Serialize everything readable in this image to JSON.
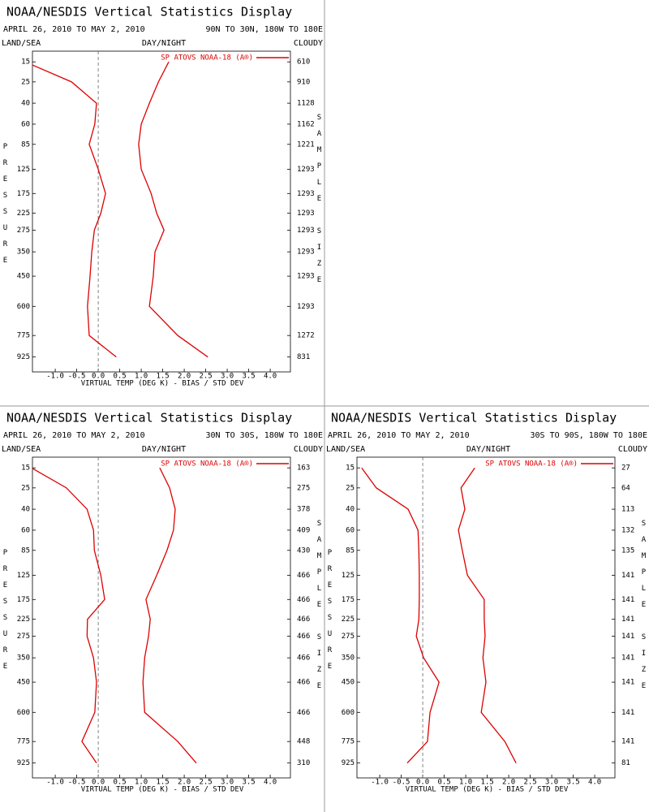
{
  "chart_data": [
    {
      "type": "profile",
      "title": "NOAA/NESDIS Vertical Statistics Display",
      "subtitle": "APRIL 26, 2010 TO MAY 2, 2010",
      "region": "90N TO 30N, 180W TO 180E",
      "land_sea": "LAND/SEA",
      "day_night": "DAY/NIGHT",
      "cloudy": "CLOUDY",
      "xlabel": "VIRTUAL TEMP (DEG K) - BIAS / STD DEV",
      "ylabel": "PRESSURE",
      "y2label": "SAMPLE SIZE",
      "xlim": [
        -1.53,
        4.47
      ],
      "xticks": [
        {
          "value": -1.0,
          "label": "-1.0"
        },
        {
          "value": -0.5,
          "label": "-0.5"
        },
        {
          "value": 0,
          "label": "0.0"
        },
        {
          "value": 0.5,
          "label": "0.5"
        },
        {
          "value": 1.0,
          "label": "1.0"
        },
        {
          "value": 1.5,
          "label": "1.5"
        },
        {
          "value": 2.0,
          "label": "2.0"
        },
        {
          "value": 2.5,
          "label": "2.5"
        },
        {
          "value": 3.0,
          "label": "3.0"
        },
        {
          "value": 3.5,
          "label": "3.5"
        },
        {
          "value": 4.0,
          "label": "4.0"
        }
      ],
      "ylim": [
        11,
        1040
      ],
      "yscale": {
        "type": "power",
        "exponent": 0.3,
        "reversed": true
      },
      "pressure": [
        15,
        25,
        40,
        60,
        85,
        125,
        175,
        225,
        275,
        350,
        450,
        600,
        775,
        925
      ],
      "sample_size": [
        610,
        910,
        1128,
        1162,
        1221,
        1293,
        1293,
        1293,
        1293,
        1293,
        1293,
        1293,
        1272,
        831
      ],
      "series": [
        {
          "name": "SP ATOVS NOAA-18 (A®)",
          "color": "#dd0000",
          "bias": [
            -1.7,
            -0.62,
            -0.04,
            -0.08,
            -0.21,
            0.0,
            0.17,
            0.06,
            -0.09,
            -0.15,
            -0.19,
            -0.25,
            -0.21,
            0.42
          ],
          "std_dev": [
            1.64,
            1.4,
            1.19,
            1.0,
            0.94,
            1.0,
            1.23,
            1.36,
            1.53,
            1.32,
            1.28,
            1.19,
            1.85,
            2.55
          ]
        }
      ]
    },
    {
      "type": "profile",
      "title": "NOAA/NESDIS Vertical Statistics Display",
      "subtitle": "APRIL 26, 2010 TO MAY 2, 2010",
      "region": "30N TO 30S, 180W TO 180E",
      "land_sea": "LAND/SEA",
      "day_night": "DAY/NIGHT",
      "cloudy": "CLOUDY",
      "xlabel": "VIRTUAL TEMP (DEG K) - BIAS / STD DEV",
      "ylabel": "PRESSURE",
      "y2label": "SAMPLE SIZE",
      "xlim": [
        -1.53,
        4.47
      ],
      "xticks": [
        {
          "value": -1.0,
          "label": "-1.0"
        },
        {
          "value": -0.5,
          "label": "-0.5"
        },
        {
          "value": 0,
          "label": "0.0"
        },
        {
          "value": 0.5,
          "label": "0.5"
        },
        {
          "value": 1.0,
          "label": "1.0"
        },
        {
          "value": 1.5,
          "label": "1.5"
        },
        {
          "value": 2.0,
          "label": "2.0"
        },
        {
          "value": 2.5,
          "label": "2.5"
        },
        {
          "value": 3.0,
          "label": "3.0"
        },
        {
          "value": 3.5,
          "label": "3.5"
        },
        {
          "value": 4.0,
          "label": "4.0"
        }
      ],
      "ylim": [
        11,
        1040
      ],
      "yscale": {
        "type": "power",
        "exponent": 0.3,
        "reversed": true
      },
      "pressure": [
        15,
        25,
        40,
        60,
        85,
        125,
        175,
        225,
        275,
        350,
        450,
        600,
        775,
        925
      ],
      "sample_size": [
        163,
        275,
        378,
        409,
        430,
        466,
        466,
        466,
        466,
        466,
        466,
        466,
        448,
        310
      ],
      "series": [
        {
          "name": "SP ATOVS NOAA-18 (A®)",
          "color": "#dd0000",
          "bias": [
            -1.55,
            -0.74,
            -0.26,
            -0.11,
            -0.09,
            0.06,
            0.15,
            -0.25,
            -0.26,
            -0.11,
            -0.04,
            -0.08,
            -0.38,
            -0.04
          ],
          "std_dev": [
            1.43,
            1.66,
            1.79,
            1.75,
            1.6,
            1.36,
            1.11,
            1.21,
            1.17,
            1.08,
            1.04,
            1.08,
            1.85,
            2.28
          ]
        }
      ]
    },
    {
      "type": "profile",
      "title": "NOAA/NESDIS Vertical Statistics Display",
      "subtitle": "APRIL 26, 2010 TO MAY 2, 2010",
      "region": "30S TO 90S, 180W TO 180E",
      "land_sea": "LAND/SEA",
      "day_night": "DAY/NIGHT",
      "cloudy": "CLOUDY",
      "xlabel": "VIRTUAL TEMP (DEG K) - BIAS / STD DEV",
      "ylabel": "PRESSURE",
      "y2label": "SAMPLE SIZE",
      "xlim": [
        -1.53,
        4.47
      ],
      "xticks": [
        {
          "value": -1.0,
          "label": "-1.0"
        },
        {
          "value": -0.5,
          "label": "-0.5"
        },
        {
          "value": 0,
          "label": "0.0"
        },
        {
          "value": 0.5,
          "label": "0.5"
        },
        {
          "value": 1.0,
          "label": "1.0"
        },
        {
          "value": 1.5,
          "label": "1.5"
        },
        {
          "value": 2.0,
          "label": "2.0"
        },
        {
          "value": 2.5,
          "label": "2.5"
        },
        {
          "value": 3.0,
          "label": "3.0"
        },
        {
          "value": 3.5,
          "label": "3.5"
        },
        {
          "value": 4.0,
          "label": "4.0"
        }
      ],
      "ylim": [
        11,
        1040
      ],
      "yscale": {
        "type": "power",
        "exponent": 0.3,
        "reversed": true
      },
      "pressure": [
        15,
        25,
        40,
        60,
        85,
        125,
        175,
        225,
        275,
        350,
        450,
        600,
        775,
        925
      ],
      "sample_size": [
        27,
        64,
        113,
        132,
        135,
        141,
        141,
        141,
        141,
        141,
        141,
        141,
        141,
        81
      ],
      "series": [
        {
          "name": "SP ATOVS NOAA-18 (A®)",
          "color": "#dd0000",
          "bias": [
            -1.42,
            -1.08,
            -0.34,
            -0.11,
            -0.09,
            -0.08,
            -0.08,
            -0.09,
            -0.15,
            0.02,
            0.38,
            0.17,
            0.11,
            -0.36
          ],
          "std_dev": [
            1.21,
            0.89,
            0.98,
            0.83,
            0.92,
            1.04,
            1.43,
            1.43,
            1.45,
            1.4,
            1.47,
            1.36,
            1.91,
            2.17
          ]
        }
      ]
    }
  ]
}
